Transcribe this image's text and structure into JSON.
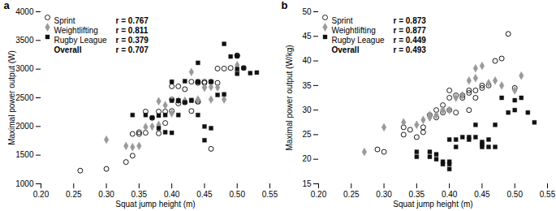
{
  "chart_data": [
    {
      "type": "scatter",
      "title": "a",
      "x_label": "Squat jump height (m)",
      "y_label": "Maximal power output (W)",
      "xlim": [
        0.2,
        0.55
      ],
      "ylim": [
        1000,
        4000
      ],
      "xticks": [
        {
          "value": 0.2,
          "label": "0.20"
        },
        0.25,
        {
          "value": 0.3,
          "label": "0.30"
        },
        0.35,
        {
          "value": 0.4,
          "label": "0.40"
        },
        0.45,
        {
          "value": 0.5,
          "label": "0.50"
        },
        0.55
      ],
      "yticks": [
        1000,
        1500,
        2000,
        2500,
        3000,
        3500,
        4000
      ],
      "series": [
        {
          "name": "Sprint",
          "color": "#000000",
          "marker": "open_circle",
          "annotation": "r = 0.767",
          "x": [
            0.26,
            0.3,
            0.33,
            0.34,
            0.34,
            0.35,
            0.35,
            0.36,
            0.36,
            0.37,
            0.38,
            0.38,
            0.39,
            0.39,
            0.4,
            0.4,
            0.4,
            0.41,
            0.41,
            0.42,
            0.42,
            0.43,
            0.43,
            0.44,
            0.44,
            0.44,
            0.44,
            0.45,
            0.45,
            0.46,
            0.46,
            0.47,
            0.47,
            0.48,
            0.49,
            0.5,
            0.5,
            0.51
          ],
          "values": [
            1230,
            1260,
            1380,
            1490,
            1870,
            1870,
            1900,
            1890,
            2260,
            2150,
            1880,
            2260,
            2060,
            2260,
            2270,
            2470,
            2700,
            2400,
            2700,
            2420,
            2650,
            2270,
            2780,
            2440,
            2760,
            2780,
            2430,
            2780,
            2760,
            1610,
            2780,
            3010,
            2760,
            3010,
            3020,
            3240,
            3230,
            3020
          ]
        },
        {
          "name": "Weightlifting",
          "color": "#999999",
          "marker": "diamond",
          "annotation": "r = 0.811",
          "x": [
            0.3,
            0.33,
            0.34,
            0.35,
            0.36,
            0.37,
            0.38,
            0.38,
            0.39,
            0.4,
            0.41,
            0.42,
            0.43,
            0.44,
            0.44,
            0.45,
            0.45,
            0.46,
            0.46,
            0.47,
            0.48,
            0.5
          ],
          "values": [
            1770,
            1660,
            1640,
            1660,
            1990,
            2000,
            2030,
            2440,
            2370,
            2230,
            2450,
            2450,
            2950,
            2470,
            2450,
            2680,
            2680,
            2690,
            2470,
            2680,
            2470,
            3070
          ]
        },
        {
          "name": "Rugby League",
          "color": "#111111",
          "marker": "square",
          "annotation": "r = 0.379",
          "x": [
            0.34,
            0.36,
            0.37,
            0.38,
            0.38,
            0.39,
            0.39,
            0.4,
            0.4,
            0.4,
            0.41,
            0.41,
            0.41,
            0.42,
            0.42,
            0.43,
            0.43,
            0.44,
            0.44,
            0.44,
            0.45,
            0.45,
            0.46,
            0.46,
            0.47,
            0.48,
            0.48,
            0.49,
            0.5,
            0.5,
            0.5,
            0.51,
            0.52,
            0.53
          ],
          "values": [
            2200,
            2200,
            2150,
            2190,
            1970,
            1900,
            2200,
            1890,
            2450,
            2780,
            2450,
            2200,
            2450,
            2420,
            2790,
            2460,
            2450,
            2200,
            3110,
            2780,
            2000,
            1760,
            2780,
            1970,
            2550,
            3440,
            2560,
            3220,
            3230,
            3000,
            2920,
            3020,
            2930,
            2940
          ]
        }
      ],
      "annotations": [
        {
          "label": "Overall",
          "text": "r = 0.707"
        }
      ]
    },
    {
      "type": "scatter",
      "title": "b",
      "x_label": "Squat jump height (m)",
      "y_label": "Maximal power output (W/kg)",
      "xlim": [
        0.2,
        0.55
      ],
      "ylim": [
        15,
        50
      ],
      "xticks": [
        {
          "value": 0.2,
          "label": "0.20"
        },
        0.25,
        {
          "value": 0.3,
          "label": "0.30"
        },
        0.35,
        {
          "value": 0.4,
          "label": "0.40"
        },
        0.45,
        {
          "value": 0.5,
          "label": "0.50"
        },
        0.55
      ],
      "yticks": [
        15,
        20,
        25,
        30,
        35,
        40,
        45,
        50
      ],
      "series": [
        {
          "name": "Sprint",
          "color": "#000000",
          "marker": "open_circle",
          "annotation": "r = 0.873",
          "x": [
            0.29,
            0.3,
            0.33,
            0.33,
            0.34,
            0.35,
            0.36,
            0.36,
            0.37,
            0.38,
            0.38,
            0.39,
            0.39,
            0.4,
            0.4,
            0.4,
            0.41,
            0.41,
            0.42,
            0.42,
            0.43,
            0.43,
            0.43,
            0.44,
            0.44,
            0.45,
            0.45,
            0.46,
            0.47,
            0.48,
            0.49,
            0.5
          ],
          "values": [
            22.0,
            21.5,
            25.0,
            26.5,
            26.0,
            24.5,
            25.5,
            26.5,
            29.0,
            28.5,
            30.0,
            31.0,
            29.5,
            30.0,
            32.5,
            34.0,
            33.0,
            29.5,
            32.5,
            33.0,
            33.5,
            34.0,
            30.0,
            34.0,
            32.5,
            34.5,
            35.0,
            35.0,
            40.0,
            40.5,
            45.5,
            34.5
          ]
        },
        {
          "name": "Weightlifting",
          "color": "#999999",
          "marker": "diamond",
          "annotation": "r = 0.877",
          "x": [
            0.27,
            0.3,
            0.33,
            0.35,
            0.36,
            0.37,
            0.37,
            0.38,
            0.39,
            0.39,
            0.4,
            0.41,
            0.42,
            0.43,
            0.44,
            0.44,
            0.45,
            0.46,
            0.47,
            0.48,
            0.5,
            0.51
          ],
          "values": [
            21.5,
            26.5,
            27.5,
            27.0,
            28.0,
            28.5,
            29.0,
            29.0,
            30.0,
            30.0,
            30.0,
            32.5,
            33.0,
            36.0,
            36.5,
            38.5,
            39.0,
            35.5,
            36.0,
            35.0,
            34.0,
            37.0
          ]
        },
        {
          "name": "Rugby League",
          "color": "#111111",
          "marker": "square",
          "annotation": "r = 0.449",
          "x": [
            0.35,
            0.35,
            0.37,
            0.37,
            0.38,
            0.38,
            0.39,
            0.39,
            0.4,
            0.4,
            0.4,
            0.4,
            0.41,
            0.41,
            0.42,
            0.43,
            0.43,
            0.44,
            0.44,
            0.45,
            0.45,
            0.45,
            0.46,
            0.46,
            0.47,
            0.47,
            0.48,
            0.49,
            0.5,
            0.5,
            0.51,
            0.52,
            0.53
          ],
          "values": [
            20.5,
            21.5,
            20.5,
            21.5,
            20.0,
            21.0,
            19.5,
            19.0,
            18.0,
            19.0,
            19.5,
            24.0,
            24.0,
            22.5,
            24.5,
            24.0,
            24.5,
            24.5,
            27.0,
            23.0,
            23.5,
            22.5,
            22.5,
            24.0,
            22.5,
            27.0,
            32.5,
            29.5,
            32.0,
            30.0,
            32.5,
            29.5,
            27.5
          ]
        }
      ],
      "annotations": [
        {
          "label": "Overall",
          "text": "r = 0.493"
        }
      ]
    }
  ]
}
